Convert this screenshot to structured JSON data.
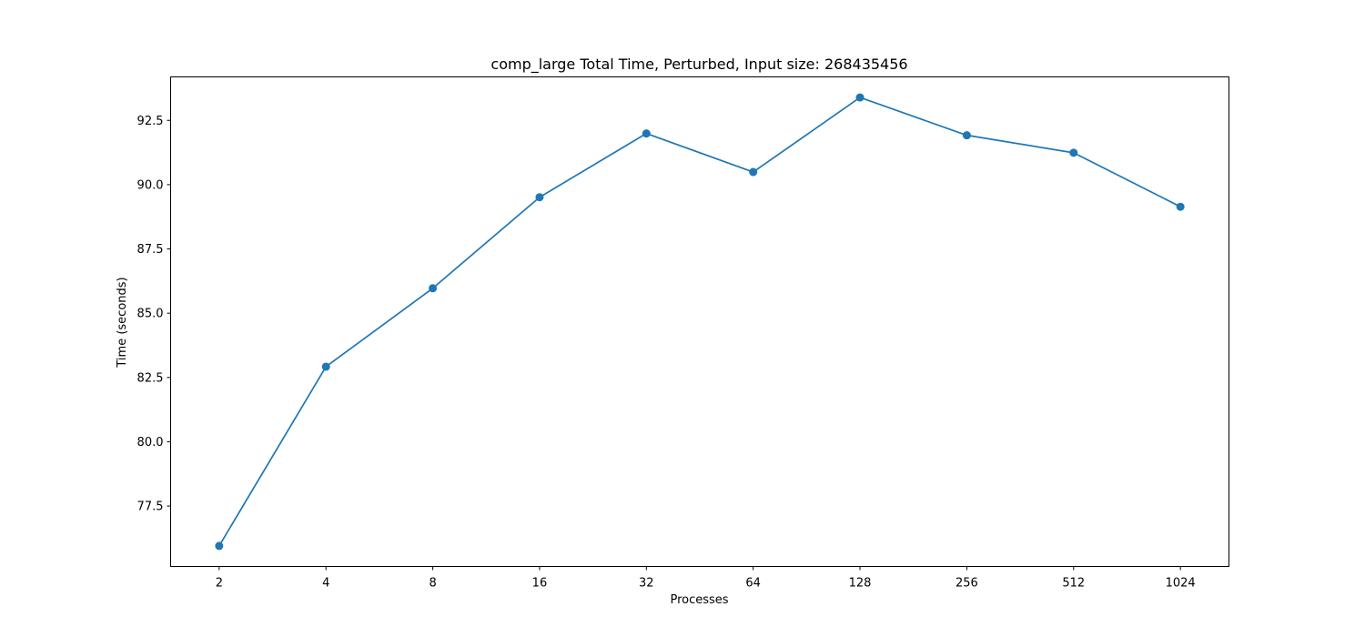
{
  "chart_data": {
    "type": "line",
    "title": "comp_large Total Time, Perturbed, Input size: 268435456",
    "xlabel": "Processes",
    "ylabel": "Time (seconds)",
    "categories": [
      "2",
      "4",
      "8",
      "16",
      "32",
      "64",
      "128",
      "256",
      "512",
      "1024"
    ],
    "series": [
      {
        "values": [
          75.95,
          82.92,
          85.97,
          89.51,
          91.99,
          90.49,
          93.39,
          91.92,
          91.24,
          89.14
        ],
        "color": "#1f77b4",
        "marker": "circle"
      }
    ],
    "ylim": [
      75.15,
      94.19
    ],
    "yticks": [
      77.5,
      80.0,
      82.5,
      85.0,
      87.5,
      90.0,
      92.5
    ],
    "ytick_labels": [
      "77.5",
      "80.0",
      "82.5",
      "85.0",
      "87.5",
      "90.0",
      "92.5"
    ],
    "grid": false,
    "legend": false
  }
}
